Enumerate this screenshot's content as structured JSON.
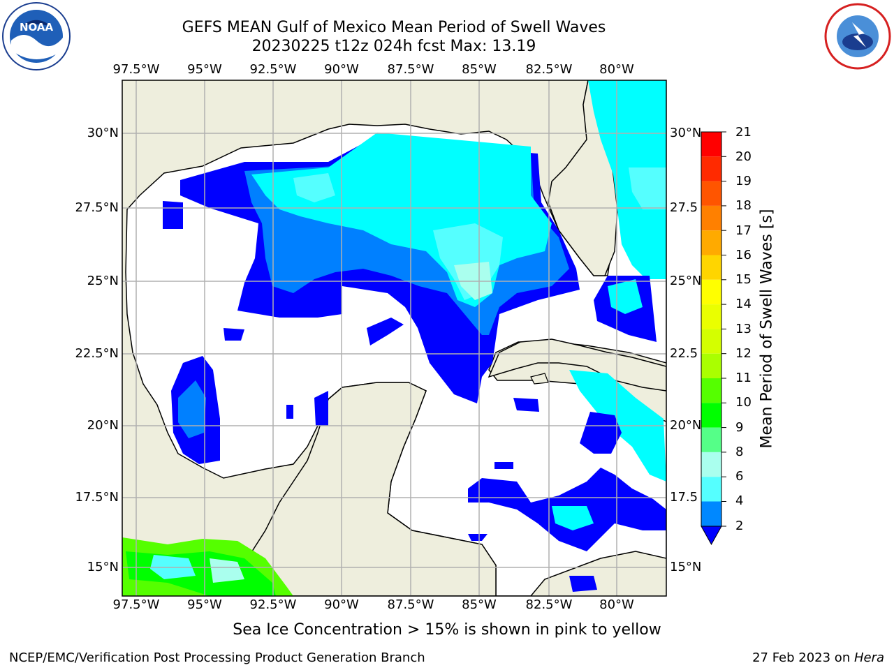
{
  "header": {
    "title": "GEFS MEAN Gulf of Mexico Mean Period of Swell Waves",
    "subtitle": "20230225 t12z 024h fcst   Max: 13.19"
  },
  "logos": {
    "left": "NOAA",
    "right": "NATIONAL WEATHER SERVICE"
  },
  "map": {
    "lon_labels": [
      "97.5°W",
      "95°W",
      "92.5°W",
      "90°W",
      "87.5°W",
      "85°W",
      "82.5°W",
      "80°W"
    ],
    "lat_labels": [
      "30°N",
      "27.5°N",
      "25°N",
      "22.5°N",
      "20°N",
      "17.5°N",
      "15°N"
    ],
    "right_lat_labels": [
      "30°N",
      "27.5",
      "25°N",
      "22.5",
      "20°N",
      "17.5",
      "15°N"
    ],
    "extent": {
      "lon": [
        -98,
        -78
      ],
      "lat": [
        14,
        31.5
      ]
    },
    "colors": {
      "land": "#eeeedd",
      "ocean_masked": "#ffffff",
      "grid": "#b0b0b0"
    }
  },
  "colorbar": {
    "label": "Mean Period of Swell Waves [s]",
    "ticks": [
      "21",
      "20",
      "19",
      "18",
      "17",
      "16",
      "15",
      "14",
      "13",
      "12",
      "11",
      "10",
      "9",
      "8",
      "6",
      "4",
      "2"
    ],
    "colors": [
      "#ff0000",
      "#ff2a00",
      "#ff5500",
      "#ff8000",
      "#ffaa00",
      "#ffd500",
      "#ffff00",
      "#eaff00",
      "#d4ff00",
      "#aaff00",
      "#55ff00",
      "#00ff00",
      "#55ff88",
      "#aaffee",
      "#55ffff",
      "#00ffff",
      "#0088ff"
    ],
    "under_color": "#0000ff"
  },
  "note": "Sea Ice Concentration > 15% is shown in pink to yellow",
  "footer": {
    "left": "NCEP/EMC/Verification Post Processing Product Generation Branch",
    "right_prefix": "27 Feb 2023 on ",
    "right_host": "Hera"
  }
}
